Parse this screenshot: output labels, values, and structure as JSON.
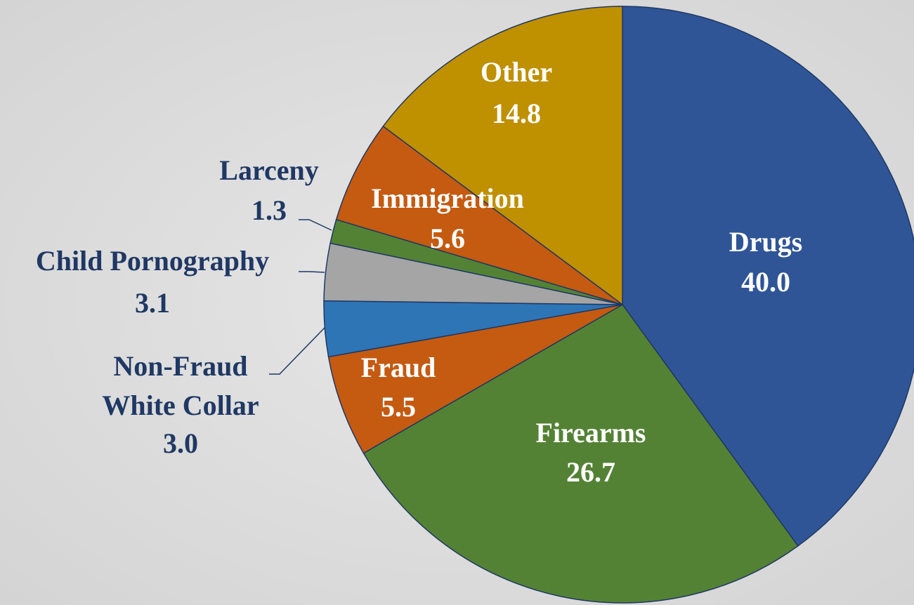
{
  "chart_data": {
    "type": "pie",
    "categories": [
      "Drugs",
      "Firearms",
      "Fraud",
      "Non-Fraud White Collar",
      "Child Pornography",
      "Larceny",
      "Immigration",
      "Other"
    ],
    "values": [
      40.0,
      26.7,
      5.5,
      3.0,
      3.1,
      1.3,
      5.6,
      14.8
    ],
    "value_labels": [
      "40.0",
      "26.7",
      "5.5",
      "3.0",
      "3.1",
      "1.3",
      "5.6",
      "14.8"
    ],
    "colors": [
      "#2f5597",
      "#548235",
      "#c55a11",
      "#2e75b6",
      "#a5a5a5",
      "#548235",
      "#c55a11",
      "#bf9000"
    ]
  }
}
